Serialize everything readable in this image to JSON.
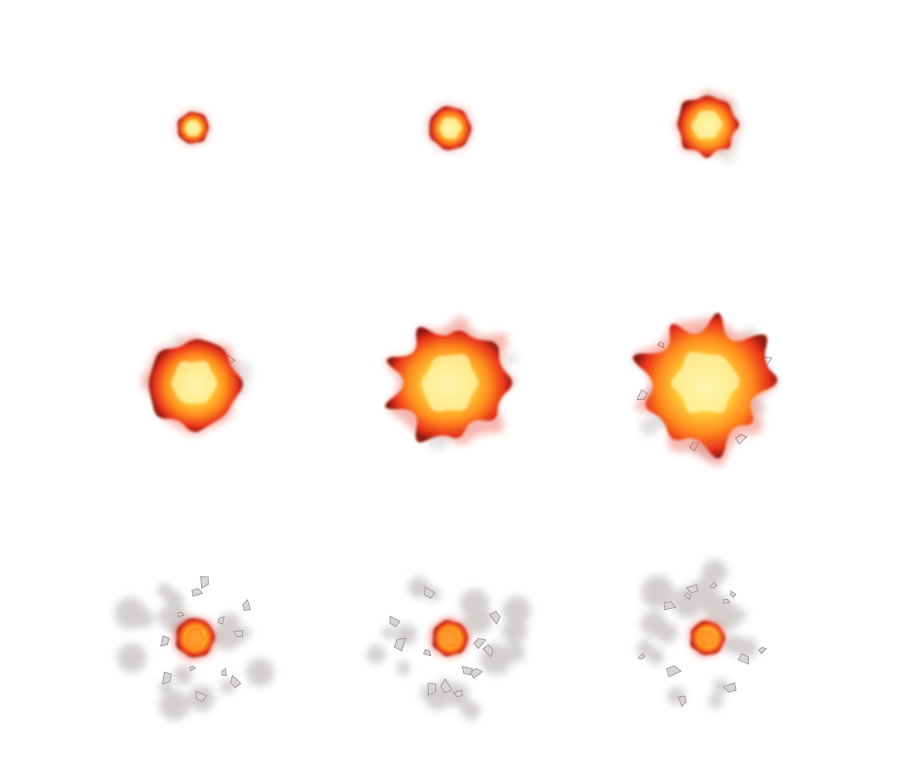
{
  "sprite_sheet": {
    "rows": 3,
    "columns": 3,
    "background": "#ffffff",
    "palette": {
      "core": "#fff6b0",
      "yellow": "#ffd23a",
      "orange": "#ff8a1e",
      "red": "#e8321a",
      "dark_red": "#8e1a10",
      "smoke": "#c9c4c4",
      "debris": "#9a9494"
    },
    "frames": [
      {
        "index": 1,
        "phase": "ignite",
        "size": 0.18,
        "smoke": 0.0,
        "debris": 0
      },
      {
        "index": 2,
        "phase": "ignite",
        "size": 0.24,
        "smoke": 0.0,
        "debris": 0
      },
      {
        "index": 3,
        "phase": "expand",
        "size": 0.33,
        "smoke": 0.05,
        "debris": 0
      },
      {
        "index": 4,
        "phase": "expand",
        "size": 0.5,
        "smoke": 0.15,
        "debris": 3
      },
      {
        "index": 5,
        "phase": "burst",
        "size": 0.62,
        "smoke": 0.3,
        "debris": 6
      },
      {
        "index": 6,
        "phase": "burst",
        "size": 0.7,
        "smoke": 0.45,
        "debris": 8
      },
      {
        "index": 7,
        "phase": "dissipate",
        "size": 0.22,
        "smoke": 1.0,
        "debris": 12
      },
      {
        "index": 8,
        "phase": "dissipate",
        "size": 0.2,
        "smoke": 1.0,
        "debris": 12
      },
      {
        "index": 9,
        "phase": "dissipate",
        "size": 0.19,
        "smoke": 1.0,
        "debris": 12
      }
    ]
  }
}
